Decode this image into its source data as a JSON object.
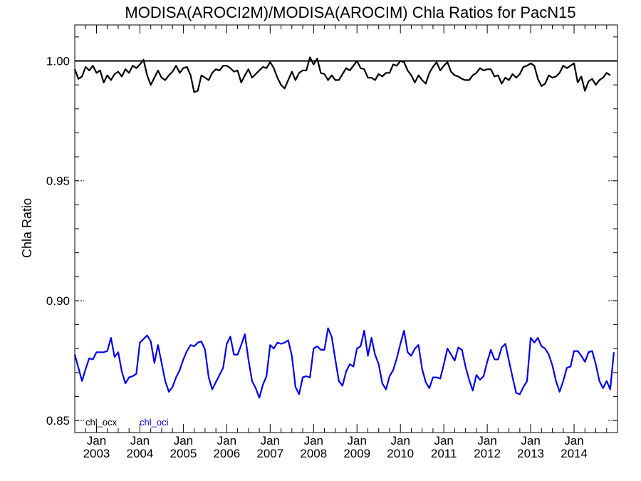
{
  "chart_data": {
    "type": "line",
    "title": "MODISA(AROCI2M)/MODISA(AROCIM)  Chla Ratios for PacN15",
    "ylabel": "Chla Ratio",
    "xlabel": "",
    "ylim": [
      0.845,
      1.015
    ],
    "xlim": [
      2002.5,
      2015.0
    ],
    "yticks": [
      {
        "value": 0.85,
        "label": "0.85"
      },
      {
        "value": 0.9,
        "label": "0.90"
      },
      {
        "value": 0.95,
        "label": "0.95"
      },
      {
        "value": 1.0,
        "label": "1.00"
      }
    ],
    "xticks": [
      {
        "value": 2003.0,
        "month": "Jan",
        "year": "2003"
      },
      {
        "value": 2004.0,
        "month": "Jan",
        "year": "2004"
      },
      {
        "value": 2005.0,
        "month": "Jan",
        "year": "2005"
      },
      {
        "value": 2006.0,
        "month": "Jan",
        "year": "2006"
      },
      {
        "value": 2007.0,
        "month": "Jan",
        "year": "2007"
      },
      {
        "value": 2008.0,
        "month": "Jan",
        "year": "2008"
      },
      {
        "value": 2009.0,
        "month": "Jan",
        "year": "2009"
      },
      {
        "value": 2010.0,
        "month": "Jan",
        "year": "2010"
      },
      {
        "value": 2011.0,
        "month": "Jan",
        "year": "2011"
      },
      {
        "value": 2012.0,
        "month": "Jan",
        "year": "2012"
      },
      {
        "value": 2013.0,
        "month": "Jan",
        "year": "2013"
      },
      {
        "value": 2014.0,
        "month": "Jan",
        "year": "2014"
      }
    ],
    "reference_line": {
      "y": 1.0,
      "color": "#000000"
    },
    "legend_position": "bottom-left",
    "grid": false,
    "series": [
      {
        "name": "chl_ocx",
        "color": "#000000",
        "x_start": 2002.5,
        "x_step": 0.0833333,
        "values": [
          0.9965,
          0.9925,
          0.9935,
          0.9975,
          0.996,
          0.998,
          0.995,
          0.996,
          0.991,
          0.994,
          0.992,
          0.9945,
          0.9955,
          0.9935,
          0.9965,
          0.995,
          0.998,
          0.997,
          0.9985,
          1.0005,
          0.994,
          0.99,
          0.993,
          0.996,
          0.993,
          0.992,
          0.994,
          0.9955,
          0.998,
          0.995,
          0.997,
          0.9975,
          0.994,
          0.987,
          0.9875,
          0.994,
          0.993,
          0.992,
          0.995,
          0.9965,
          0.996,
          0.998,
          0.998,
          0.997,
          0.9955,
          0.996,
          0.991,
          0.994,
          0.9965,
          0.993,
          0.9945,
          0.996,
          0.9975,
          0.997,
          0.9995,
          0.997,
          0.993,
          0.99,
          0.9885,
          0.992,
          0.9955,
          0.992,
          0.995,
          0.996,
          0.996,
          1.0015,
          0.9985,
          1.001,
          0.995,
          0.9945,
          0.992,
          0.994,
          0.992,
          0.992,
          0.9945,
          0.997,
          0.996,
          0.998,
          1.0,
          0.997,
          0.9965,
          0.993,
          0.993,
          0.992,
          0.9945,
          0.9935,
          0.995,
          0.995,
          0.9985,
          0.998,
          1.0,
          0.9995,
          0.996,
          0.994,
          0.991,
          0.994,
          0.992,
          0.9905,
          0.995,
          0.9975,
          0.9995,
          0.996,
          0.998,
          0.9995,
          0.9955,
          0.994,
          0.9935,
          0.9925,
          0.992,
          0.992,
          0.994,
          0.995,
          0.997,
          0.996,
          0.9965,
          0.9965,
          0.9935,
          0.994,
          0.9905,
          0.993,
          0.992,
          0.9945,
          0.993,
          0.9945,
          0.9975,
          0.998,
          0.999,
          0.998,
          0.9925,
          0.9895,
          0.9905,
          0.994,
          0.993,
          0.9935,
          0.995,
          0.998,
          0.997,
          0.998,
          0.999,
          0.991,
          0.9935,
          0.9875,
          0.9915,
          0.9925,
          0.99,
          0.992,
          0.993,
          0.995,
          0.994
        ]
      },
      {
        "name": "chl_oci",
        "color": "#0000ee",
        "x_start": 2002.5,
        "x_step": 0.0833333,
        "values": [
          0.8775,
          0.872,
          0.8665,
          0.8715,
          0.876,
          0.8755,
          0.8785,
          0.8785,
          0.8785,
          0.879,
          0.8845,
          0.8765,
          0.8785,
          0.8705,
          0.8655,
          0.868,
          0.8685,
          0.8695,
          0.8825,
          0.884,
          0.8855,
          0.883,
          0.874,
          0.8815,
          0.874,
          0.8665,
          0.862,
          0.864,
          0.868,
          0.871,
          0.8755,
          0.879,
          0.8815,
          0.881,
          0.8825,
          0.883,
          0.8795,
          0.868,
          0.863,
          0.866,
          0.869,
          0.872,
          0.882,
          0.885,
          0.8775,
          0.8775,
          0.8815,
          0.886,
          0.8755,
          0.8665,
          0.8635,
          0.8595,
          0.865,
          0.8685,
          0.8815,
          0.88,
          0.8825,
          0.882,
          0.8825,
          0.8835,
          0.877,
          0.864,
          0.861,
          0.868,
          0.8685,
          0.868,
          0.88,
          0.881,
          0.8795,
          0.8795,
          0.8885,
          0.885,
          0.8755,
          0.8665,
          0.8645,
          0.8705,
          0.8735,
          0.8725,
          0.88,
          0.881,
          0.8875,
          0.877,
          0.8845,
          0.8775,
          0.8735,
          0.8655,
          0.863,
          0.8685,
          0.871,
          0.876,
          0.882,
          0.8875,
          0.8785,
          0.877,
          0.88,
          0.8815,
          0.8715,
          0.866,
          0.8635,
          0.868,
          0.868,
          0.8675,
          0.8735,
          0.88,
          0.8775,
          0.875,
          0.8805,
          0.8795,
          0.8725,
          0.867,
          0.8625,
          0.869,
          0.867,
          0.8685,
          0.8745,
          0.8795,
          0.8755,
          0.8755,
          0.8805,
          0.882,
          0.875,
          0.868,
          0.8615,
          0.861,
          0.864,
          0.8665,
          0.8845,
          0.8825,
          0.8845,
          0.881,
          0.88,
          0.8775,
          0.873,
          0.8665,
          0.862,
          0.8665,
          0.872,
          0.8725,
          0.879,
          0.879,
          0.877,
          0.8745,
          0.8785,
          0.879,
          0.8735,
          0.8665,
          0.8635,
          0.8665,
          0.863,
          0.8785
        ]
      }
    ]
  }
}
